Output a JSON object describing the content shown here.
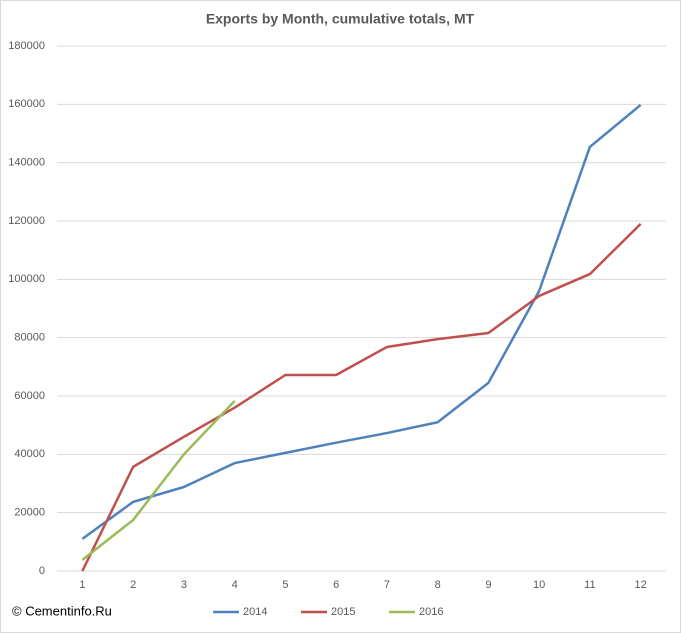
{
  "chart_data": {
    "type": "line",
    "title": "Exports by Month, cumulative totals, MT",
    "annotation": "© Cementinfo.Ru",
    "categories": [
      "1",
      "2",
      "3",
      "4",
      "5",
      "6",
      "7",
      "8",
      "9",
      "10",
      "11",
      "12"
    ],
    "series": [
      {
        "name": "2014",
        "color": "#4f81bd",
        "values": [
          11000,
          23700,
          28800,
          37000,
          40500,
          44000,
          47300,
          51000,
          64500,
          96000,
          145400,
          159800
        ]
      },
      {
        "name": "2015",
        "color": "#c0504d",
        "values": [
          0,
          35700,
          46000,
          56000,
          67200,
          67200,
          76800,
          79500,
          81600,
          94300,
          101800,
          119000
        ]
      },
      {
        "name": "2016",
        "color": "#9bbb59",
        "values": [
          3800,
          17500,
          40000,
          58300,
          null,
          null,
          null,
          null,
          null,
          null,
          null,
          null
        ]
      }
    ],
    "ylim": [
      0,
      180000
    ],
    "yticks": [
      0,
      20000,
      40000,
      60000,
      80000,
      100000,
      120000,
      140000,
      160000,
      180000
    ],
    "grid": true,
    "legend": "bottom"
  }
}
